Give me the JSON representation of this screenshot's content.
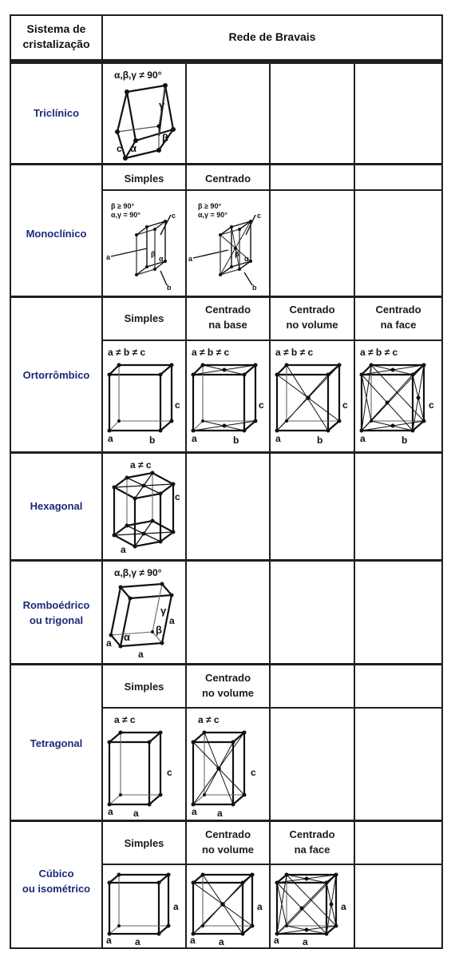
{
  "header": {
    "col1": [
      "Sistema de",
      "cristalização"
    ],
    "col2": "Rede de Bravais"
  },
  "systems": [
    {
      "id": "triclinico",
      "label": [
        "Triclínico"
      ],
      "subtitles": [],
      "cells": [
        {
          "condition": "α,β,γ ≠ 90°",
          "axes": {
            "alpha": "α",
            "beta": "β",
            "gamma": "γ",
            "c": "c"
          }
        }
      ]
    },
    {
      "id": "monoclinico",
      "label": [
        "Monoclínico"
      ],
      "subtitles": [
        "Simples",
        "Centrado"
      ],
      "cells": [
        {
          "cond1": "β ≥ 90°",
          "cond2": "α,γ = 90°",
          "axes": {
            "a": "a",
            "b": "b",
            "c": "c",
            "beta": "β",
            "alpha": "α"
          }
        },
        {
          "cond1": "β ≥ 90°",
          "cond2": "α,γ = 90°",
          "axes": {
            "a": "a",
            "b": "b",
            "c": "c",
            "beta": "β",
            "alpha": "α"
          }
        }
      ]
    },
    {
      "id": "ortorrombico",
      "label": [
        "Ortorrômbico"
      ],
      "subtitles": [
        [
          "Simples"
        ],
        [
          "Centrado",
          "na base"
        ],
        [
          "Centrado",
          "no volume"
        ],
        [
          "Centrado",
          "na face"
        ]
      ],
      "cells": [
        {
          "condition": "a ≠ b ≠ c",
          "axes": {
            "a": "a",
            "b": "b",
            "c": "c"
          }
        },
        {
          "condition": "a ≠ b ≠ c",
          "axes": {
            "a": "a",
            "b": "b",
            "c": "c"
          }
        },
        {
          "condition": "a ≠ b ≠ c",
          "axes": {
            "a": "a",
            "b": "b",
            "c": "c"
          }
        },
        {
          "condition": "a ≠ b ≠ c",
          "axes": {
            "a": "a",
            "b": "b",
            "c": "c"
          }
        }
      ]
    },
    {
      "id": "hexagonal",
      "label": [
        "Hexagonal"
      ],
      "subtitles": [],
      "cells": [
        {
          "condition": "a ≠ c",
          "axes": {
            "a": "a",
            "c": "c"
          }
        }
      ]
    },
    {
      "id": "romboedrico",
      "label": [
        "Romboédrico",
        "ou trigonal"
      ],
      "subtitles": [],
      "cells": [
        {
          "condition": "α,β,γ ≠ 90°",
          "axes": {
            "a": "a",
            "alpha": "α",
            "beta": "β",
            "gamma": "γ"
          }
        }
      ]
    },
    {
      "id": "tetragonal",
      "label": [
        "Tetragonal"
      ],
      "subtitles": [
        [
          "Simples"
        ],
        [
          "Centrado",
          "no volume"
        ]
      ],
      "cells": [
        {
          "condition": "a ≠ c",
          "axes": {
            "a": "a",
            "c": "c"
          }
        },
        {
          "condition": "a ≠ c",
          "axes": {
            "a": "a",
            "c": "c"
          }
        }
      ]
    },
    {
      "id": "cubico",
      "label": [
        "Cúbico",
        "ou isométrico"
      ],
      "subtitles": [
        [
          "Simples"
        ],
        [
          "Centrado",
          "no volume"
        ],
        [
          "Centrado",
          "na face"
        ]
      ],
      "cells": [
        {
          "axes": {
            "a": "a"
          }
        },
        {
          "axes": {
            "a": "a"
          }
        },
        {
          "axes": {
            "a": "a"
          }
        }
      ]
    }
  ]
}
